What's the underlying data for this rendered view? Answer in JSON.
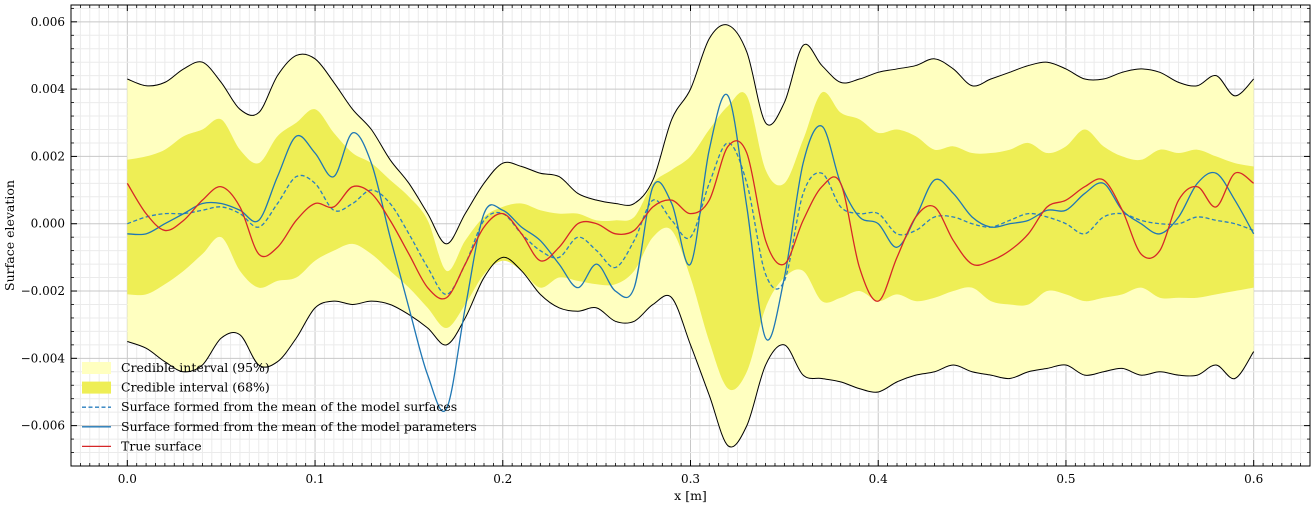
{
  "chart_data": {
    "type": "line",
    "xlabel": "x [m]",
    "ylabel": "Surface elevation",
    "xlim": [
      -0.03,
      0.63
    ],
    "ylim": [
      -0.0072,
      0.0065
    ],
    "x_ticks": [
      0.0,
      0.1,
      0.2,
      0.3,
      0.4,
      0.5,
      0.6
    ],
    "x_tick_labels": [
      "0.0",
      "0.1",
      "0.2",
      "0.3",
      "0.4",
      "0.5",
      "0.6"
    ],
    "y_ticks": [
      -0.006,
      -0.004,
      -0.002,
      0.0,
      0.002,
      0.004,
      0.006
    ],
    "y_tick_labels": [
      "−0.006",
      "−0.004",
      "−0.002",
      "0.000",
      "0.002",
      "0.004",
      "0.006"
    ],
    "grid": true,
    "legend_position": "lower-left",
    "x": [
      0.0,
      0.01,
      0.02,
      0.03,
      0.04,
      0.05,
      0.06,
      0.07,
      0.08,
      0.09,
      0.1,
      0.11,
      0.12,
      0.13,
      0.14,
      0.15,
      0.16,
      0.17,
      0.18,
      0.19,
      0.2,
      0.21,
      0.22,
      0.23,
      0.24,
      0.25,
      0.26,
      0.27,
      0.28,
      0.29,
      0.3,
      0.31,
      0.32,
      0.33,
      0.34,
      0.35,
      0.36,
      0.37,
      0.38,
      0.39,
      0.4,
      0.41,
      0.42,
      0.43,
      0.44,
      0.45,
      0.46,
      0.47,
      0.48,
      0.49,
      0.5,
      0.51,
      0.52,
      0.53,
      0.54,
      0.55,
      0.56,
      0.57,
      0.58,
      0.59,
      0.6
    ],
    "bands": [
      {
        "name": "Credible interval (95%)",
        "color": "#ffffc0",
        "edge_color": "#000000",
        "upper": [
          0.0043,
          0.0041,
          0.0042,
          0.0046,
          0.0048,
          0.0042,
          0.0034,
          0.0033,
          0.0044,
          0.005,
          0.0049,
          0.0042,
          0.0034,
          0.0028,
          0.0019,
          0.0012,
          0.0003,
          -0.0006,
          0.0003,
          0.0012,
          0.0018,
          0.0017,
          0.0015,
          0.0014,
          0.0009,
          0.0007,
          0.0006,
          0.0006,
          0.0013,
          0.0031,
          0.004,
          0.0055,
          0.0059,
          0.0051,
          0.003,
          0.0036,
          0.0053,
          0.0047,
          0.0042,
          0.0043,
          0.0045,
          0.0046,
          0.0047,
          0.0049,
          0.0046,
          0.0041,
          0.0043,
          0.0045,
          0.0047,
          0.0048,
          0.0046,
          0.0043,
          0.0043,
          0.0045,
          0.0046,
          0.0045,
          0.0042,
          0.0041,
          0.0044,
          0.0038,
          0.0043
        ],
        "lower": [
          -0.0035,
          -0.0037,
          -0.0041,
          -0.0044,
          -0.0042,
          -0.0034,
          -0.0033,
          -0.0042,
          -0.0041,
          -0.0034,
          -0.0025,
          -0.0023,
          -0.0024,
          -0.0023,
          -0.0024,
          -0.0027,
          -0.0031,
          -0.0036,
          -0.0028,
          -0.0016,
          -0.001,
          -0.0014,
          -0.0021,
          -0.0025,
          -0.0026,
          -0.0025,
          -0.0029,
          -0.0029,
          -0.0024,
          -0.0022,
          -0.0036,
          -0.0051,
          -0.0066,
          -0.006,
          -0.0042,
          -0.0036,
          -0.0045,
          -0.0046,
          -0.0047,
          -0.0049,
          -0.005,
          -0.0047,
          -0.0045,
          -0.0044,
          -0.0042,
          -0.0044,
          -0.0045,
          -0.0046,
          -0.0044,
          -0.0043,
          -0.0042,
          -0.0045,
          -0.0044,
          -0.0043,
          -0.0045,
          -0.0044,
          -0.0045,
          -0.0045,
          -0.0042,
          -0.0046,
          -0.0038
        ]
      },
      {
        "name": "Credible interval (68%)",
        "color": "#eeee55",
        "upper": [
          0.0019,
          0.002,
          0.0022,
          0.0026,
          0.0028,
          0.0031,
          0.0022,
          0.0018,
          0.0026,
          0.003,
          0.0034,
          0.0027,
          0.0021,
          0.0018,
          0.0013,
          0.0008,
          0.0001,
          -0.0014,
          -0.0005,
          0.0002,
          0.0005,
          0.0006,
          0.0004,
          0.0003,
          0.0003,
          0.0001,
          0.0001,
          0.0002,
          0.0012,
          0.0016,
          0.002,
          0.0028,
          0.0035,
          0.0038,
          0.0016,
          0.0012,
          0.0025,
          0.0039,
          0.0033,
          0.0031,
          0.0027,
          0.0028,
          0.0026,
          0.0022,
          0.0023,
          0.0021,
          0.0021,
          0.0022,
          0.0024,
          0.0021,
          0.0023,
          0.0028,
          0.0023,
          0.002,
          0.0019,
          0.0022,
          0.0021,
          0.0022,
          0.002,
          0.0018,
          0.0017
        ],
        "lower": [
          -0.0021,
          -0.0021,
          -0.0018,
          -0.0014,
          -0.0009,
          -0.0004,
          -0.0014,
          -0.0019,
          -0.0017,
          -0.0016,
          -0.0011,
          -0.0008,
          -0.0006,
          -0.0009,
          -0.0014,
          -0.0019,
          -0.0025,
          -0.0031,
          -0.0024,
          -0.0015,
          -0.0011,
          -0.0014,
          -0.0019,
          -0.0016,
          -0.0017,
          -0.0018,
          -0.0018,
          -0.0014,
          -0.0004,
          -0.0002,
          -0.0016,
          -0.0035,
          -0.0049,
          -0.0044,
          -0.0025,
          -0.0016,
          -0.0014,
          -0.0023,
          -0.0022,
          -0.002,
          -0.0023,
          -0.0021,
          -0.0023,
          -0.0022,
          -0.002,
          -0.0019,
          -0.0023,
          -0.0024,
          -0.0024,
          -0.002,
          -0.0021,
          -0.0023,
          -0.0022,
          -0.0021,
          -0.0019,
          -0.0022,
          -0.0022,
          -0.0022,
          -0.0021,
          -0.002,
          -0.0019
        ]
      }
    ],
    "series": [
      {
        "name": "Surface formed from the mean of the model surfaces",
        "color": "#2a7fbf",
        "dash": true,
        "values": [
          0.0,
          0.0002,
          0.0003,
          0.0003,
          0.0004,
          0.0005,
          0.0003,
          -0.0001,
          0.0006,
          0.0014,
          0.0012,
          0.0004,
          0.0006,
          0.001,
          0.0006,
          -0.0003,
          -0.0013,
          -0.0021,
          -0.0012,
          0.0001,
          0.0003,
          -0.0003,
          -0.0008,
          -0.001,
          -0.0004,
          -0.0008,
          -0.0013,
          -0.0005,
          0.0007,
          0.0001,
          -0.0004,
          0.0012,
          0.0024,
          0.0012,
          -0.0015,
          -0.0017,
          0.0009,
          0.0015,
          0.0005,
          0.0003,
          0.0003,
          -0.0003,
          -0.0002,
          0.0002,
          0.0002,
          0.0,
          -0.0001,
          0.0001,
          0.0003,
          0.0002,
          0.0,
          -0.0003,
          0.0002,
          0.0003,
          0.0001,
          0.0,
          0.0,
          0.0002,
          0.0001,
          0.0,
          -0.0002
        ]
      },
      {
        "name": "Surface formed from the mean of the model parameters",
        "color": "#1f77b4",
        "dash": false,
        "values": [
          -0.0003,
          -0.0003,
          0.0,
          0.0003,
          0.0006,
          0.0006,
          0.0004,
          0.0001,
          0.0014,
          0.0026,
          0.0021,
          0.0014,
          0.0027,
          0.0018,
          -0.0004,
          -0.0025,
          -0.0045,
          -0.0055,
          -0.0025,
          0.0003,
          0.0004,
          -0.0001,
          -0.0005,
          -0.0012,
          -0.0019,
          -0.0012,
          -0.002,
          -0.0019,
          0.0011,
          0.0006,
          -0.0012,
          0.0022,
          0.0038,
          0.0005,
          -0.0034,
          -0.0016,
          0.0018,
          0.0029,
          0.0012,
          0.0002,
          0.0,
          -0.0007,
          0.0002,
          0.0013,
          0.0009,
          0.0002,
          -0.0001,
          0.0,
          0.0001,
          0.0004,
          0.0004,
          0.0009,
          0.0012,
          0.0004,
          0.0,
          -0.0003,
          0.0002,
          0.0012,
          0.0015,
          0.0007,
          -0.0003
        ]
      },
      {
        "name": "True surface",
        "color": "#d62728",
        "dash": false,
        "values": [
          0.0012,
          0.0003,
          -0.0002,
          0.0001,
          0.0007,
          0.0011,
          0.0005,
          -0.0009,
          -0.0007,
          0.0001,
          0.0006,
          0.0005,
          0.0011,
          0.0009,
          0.0001,
          -0.0009,
          -0.0019,
          -0.0022,
          -0.0012,
          -0.0001,
          0.0003,
          -0.0003,
          -0.0011,
          -0.0007,
          0.0,
          0.0,
          -0.0003,
          -0.0002,
          0.0005,
          0.0007,
          0.0003,
          0.0007,
          0.0023,
          0.0021,
          -0.0005,
          -0.0012,
          0.0001,
          0.0011,
          0.0012,
          -0.0013,
          -0.0023,
          -0.001,
          0.0002,
          0.0005,
          -0.0005,
          -0.0012,
          -0.0011,
          -0.0008,
          -0.0003,
          0.0005,
          0.0007,
          0.0011,
          0.0013,
          0.0004,
          -0.0009,
          -0.0008,
          0.0007,
          0.0011,
          0.0005,
          0.0015,
          0.0012
        ]
      }
    ]
  }
}
